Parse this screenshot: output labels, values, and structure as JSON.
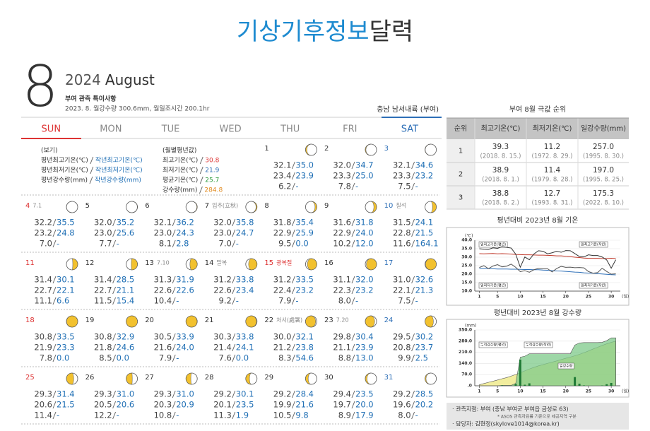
{
  "title": {
    "main": "기상기후정보",
    "sub": "달력"
  },
  "header": {
    "month": "8",
    "year": "2024",
    "month_name": "August",
    "notice_title": "부여 관측 특이사항",
    "notice_text": "2023. 8. 월강수량 300.6mm, 월일조시간 200.1hr",
    "location": "충남 남서내륙 (부여)"
  },
  "calendar": {
    "weekdays": [
      "SUN",
      "MON",
      "TUE",
      "WED",
      "THU",
      "FRI",
      "SAT"
    ],
    "legend": {
      "title": "(보기)",
      "lines": [
        [
          "평년최고기온(℃)",
          "작년최고기온(℃)"
        ],
        [
          "평년최저기온(℃)",
          "작년최저기온(℃)"
        ],
        [
          "평년강수량(mm)",
          "작년강수량(mm)"
        ]
      ]
    },
    "monthly_normals": {
      "title": "(월별평년값)",
      "lines": [
        [
          "최고기온(℃)",
          "30.8"
        ],
        [
          "최저기온(℃)",
          "21.9"
        ],
        [
          "평균기온(℃)",
          "25.7"
        ],
        [
          "강수량(mm)",
          "284.8"
        ]
      ]
    },
    "days": [
      {
        "day": "1",
        "rows": [
          [
            "32.1",
            "35.0"
          ],
          [
            "23.4",
            "23.9"
          ],
          [
            "6.2",
            "-"
          ]
        ]
      },
      {
        "day": "2",
        "rows": [
          [
            "32.0",
            "34.7"
          ],
          [
            "23.3",
            "25.0"
          ],
          [
            "7.8",
            "-"
          ]
        ]
      },
      {
        "day": "3",
        "rows": [
          [
            "32.1",
            "34.6"
          ],
          [
            "23.3",
            "23.2"
          ],
          [
            "7.5",
            "-"
          ]
        ]
      },
      {
        "day": "4",
        "note": "7.1",
        "rows": [
          [
            "32.2",
            "35.5"
          ],
          [
            "23.2",
            "24.8"
          ],
          [
            "7.0",
            "-"
          ]
        ]
      },
      {
        "day": "5",
        "rows": [
          [
            "32.0",
            "35.2"
          ],
          [
            "23.0",
            "25.6"
          ],
          [
            "7.7",
            "-"
          ]
        ]
      },
      {
        "day": "6",
        "rows": [
          [
            "32.1",
            "36.2"
          ],
          [
            "23.0",
            "24.3"
          ],
          [
            "8.1",
            "2.8"
          ]
        ]
      },
      {
        "day": "7",
        "note": "입추(立秋)",
        "rows": [
          [
            "32.0",
            "35.8"
          ],
          [
            "23.0",
            "24.7"
          ],
          [
            "7.0",
            "-"
          ]
        ]
      },
      {
        "day": "8",
        "rows": [
          [
            "31.8",
            "35.4"
          ],
          [
            "22.9",
            "25.9"
          ],
          [
            "9.5",
            "0.0"
          ]
        ]
      },
      {
        "day": "9",
        "rows": [
          [
            "31.6",
            "31.8"
          ],
          [
            "22.9",
            "24.0"
          ],
          [
            "10.2",
            "12.0"
          ]
        ]
      },
      {
        "day": "10",
        "note": "칠석",
        "rows": [
          [
            "31.5",
            "24.1"
          ],
          [
            "22.8",
            "21.5"
          ],
          [
            "11.6",
            "164.1"
          ]
        ]
      },
      {
        "day": "11",
        "rows": [
          [
            "31.4",
            "30.1"
          ],
          [
            "22.7",
            "22.1"
          ],
          [
            "11.1",
            "6.6"
          ]
        ]
      },
      {
        "day": "12",
        "rows": [
          [
            "31.4",
            "28.5"
          ],
          [
            "22.7",
            "21.1"
          ],
          [
            "11.5",
            "15.4"
          ]
        ]
      },
      {
        "day": "13",
        "note": "7.10",
        "rows": [
          [
            "31.3",
            "31.9"
          ],
          [
            "22.6",
            "22.6"
          ],
          [
            "10.4",
            "-"
          ]
        ]
      },
      {
        "day": "14",
        "note": "말복",
        "rows": [
          [
            "31.2",
            "33.8"
          ],
          [
            "22.6",
            "23.4"
          ],
          [
            "9.2",
            "-"
          ]
        ]
      },
      {
        "day": "15",
        "note": "광복절",
        "holiday": true,
        "rows": [
          [
            "31.2",
            "33.5"
          ],
          [
            "22.4",
            "23.2"
          ],
          [
            "7.9",
            "-"
          ]
        ]
      },
      {
        "day": "16",
        "rows": [
          [
            "31.1",
            "32.0"
          ],
          [
            "22.3",
            "23.2"
          ],
          [
            "8.0",
            "-"
          ]
        ]
      },
      {
        "day": "17",
        "rows": [
          [
            "31.0",
            "32.6"
          ],
          [
            "22.1",
            "21.3"
          ],
          [
            "7.5",
            "-"
          ]
        ]
      },
      {
        "day": "18",
        "rows": [
          [
            "30.8",
            "33.5"
          ],
          [
            "21.9",
            "23.3"
          ],
          [
            "7.8",
            "0.0"
          ]
        ]
      },
      {
        "day": "19",
        "rows": [
          [
            "30.8",
            "32.9"
          ],
          [
            "21.8",
            "24.6"
          ],
          [
            "8.5",
            "0.0"
          ]
        ]
      },
      {
        "day": "20",
        "rows": [
          [
            "30.5",
            "33.9"
          ],
          [
            "21.6",
            "24.0"
          ],
          [
            "7.9",
            "-"
          ]
        ]
      },
      {
        "day": "21",
        "rows": [
          [
            "30.3",
            "33.8"
          ],
          [
            "21.4",
            "24.1"
          ],
          [
            "7.6",
            "0.0"
          ]
        ]
      },
      {
        "day": "22",
        "note": "처서(處暑)",
        "rows": [
          [
            "30.0",
            "32.1"
          ],
          [
            "21.2",
            "23.8"
          ],
          [
            "8.3",
            "54.6"
          ]
        ]
      },
      {
        "day": "23",
        "note": "7.20",
        "rows": [
          [
            "29.8",
            "30.4"
          ],
          [
            "21.1",
            "23.9"
          ],
          [
            "8.8",
            "13.0"
          ]
        ]
      },
      {
        "day": "24",
        "rows": [
          [
            "29.5",
            "30.2"
          ],
          [
            "20.8",
            "23.7"
          ],
          [
            "9.9",
            "2.5"
          ]
        ]
      },
      {
        "day": "25",
        "rows": [
          [
            "29.3",
            "31.4"
          ],
          [
            "20.6",
            "21.5"
          ],
          [
            "11.4",
            "-"
          ]
        ]
      },
      {
        "day": "26",
        "rows": [
          [
            "29.3",
            "31.0"
          ],
          [
            "20.5",
            "20.6"
          ],
          [
            "12.2",
            "-"
          ]
        ]
      },
      {
        "day": "27",
        "rows": [
          [
            "29.3",
            "31.0"
          ],
          [
            "20.3",
            "20.9"
          ],
          [
            "10.8",
            "-"
          ]
        ]
      },
      {
        "day": "28",
        "rows": [
          [
            "29.2",
            "30.1"
          ],
          [
            "20.1",
            "23.5"
          ],
          [
            "11.3",
            "1.9"
          ]
        ]
      },
      {
        "day": "29",
        "rows": [
          [
            "29.2",
            "28.4"
          ],
          [
            "19.9",
            "21.6"
          ],
          [
            "10.5",
            "9.8"
          ]
        ]
      },
      {
        "day": "30",
        "rows": [
          [
            "29.4",
            "23.5"
          ],
          [
            "19.7",
            "20.0"
          ],
          [
            "8.9",
            "17.9"
          ]
        ]
      },
      {
        "day": "31",
        "rows": [
          [
            "29.2",
            "28.5"
          ],
          [
            "19.6",
            "20.2"
          ],
          [
            "8.0",
            "-"
          ]
        ]
      }
    ]
  },
  "extremes": {
    "title": "부여 8월 극값 순위",
    "headers": [
      "순위",
      "최고기온(℃)",
      "최저기온(℃)",
      "일강수량(mm)"
    ],
    "rows": [
      [
        "1",
        [
          "39.3",
          "(2018. 8. 15.)"
        ],
        [
          "11.2",
          "(1972. 8. 29.)"
        ],
        [
          "257.0",
          "(1995. 8. 30.)"
        ]
      ],
      [
        "2",
        [
          "38.9",
          "(2018. 8. 1.)"
        ],
        [
          "11.4",
          "(1979. 8. 28.)"
        ],
        [
          "197.0",
          "(1995. 8. 25.)"
        ]
      ],
      [
        "3",
        [
          "38.8",
          "(2018. 8. 2.)"
        ],
        [
          "12.7",
          "(1993. 8. 31.)"
        ],
        [
          "175.3",
          "(2022. 8. 10.)"
        ]
      ]
    ]
  },
  "chart_data": [
    {
      "type": "line",
      "title": "평년대비 2023년 8월 기온",
      "y_label": "(℃)",
      "x_label": "(일)",
      "x": [
        1,
        2,
        3,
        4,
        5,
        6,
        7,
        8,
        9,
        10,
        11,
        12,
        13,
        14,
        15,
        16,
        17,
        18,
        19,
        20,
        21,
        22,
        23,
        24,
        25,
        26,
        27,
        28,
        29,
        30,
        31
      ],
      "xlim": [
        0,
        32
      ],
      "xticks": [
        1,
        5,
        10,
        15,
        20,
        25,
        30
      ],
      "ylim": [
        10,
        40
      ],
      "yticks": [
        {
          "value": 40,
          "label": "40.0"
        },
        {
          "value": 35,
          "label": "35.0"
        },
        {
          "value": 30,
          "label": "30.0"
        },
        {
          "value": 25,
          "label": "25.0"
        },
        {
          "value": 20,
          "label": "20.0"
        },
        {
          "value": 15,
          "label": "15.0"
        },
        {
          "value": 10,
          "label": "10.0"
        }
      ],
      "series": [
        {
          "name": "일최고기온(평년)",
          "color": "#c0392b",
          "values": [
            32.1,
            32.0,
            32.1,
            32.2,
            32.0,
            32.1,
            32.0,
            31.8,
            31.6,
            31.5,
            31.4,
            31.4,
            31.3,
            31.2,
            31.2,
            31.1,
            31.0,
            30.8,
            30.8,
            30.5,
            30.3,
            30.0,
            29.8,
            29.5,
            29.3,
            29.3,
            29.3,
            29.2,
            29.2,
            29.4,
            29.2
          ]
        },
        {
          "name": "일최고기온(작년)",
          "color": "#333333",
          "values": [
            35.0,
            34.7,
            34.6,
            35.5,
            35.2,
            36.2,
            35.8,
            35.4,
            31.8,
            24.1,
            30.1,
            28.5,
            31.9,
            33.8,
            33.5,
            32.0,
            32.6,
            33.5,
            32.9,
            33.9,
            33.8,
            32.1,
            30.4,
            30.2,
            31.4,
            31.0,
            31.0,
            30.1,
            28.4,
            23.5,
            28.5
          ]
        },
        {
          "name": "일최저기온(평년)",
          "color": "#2e6fb7",
          "values": [
            23.4,
            23.3,
            23.3,
            23.2,
            23.0,
            23.0,
            23.0,
            22.9,
            22.9,
            22.8,
            22.7,
            22.7,
            22.6,
            22.6,
            22.4,
            22.3,
            22.1,
            21.9,
            21.8,
            21.6,
            21.4,
            21.2,
            21.1,
            20.8,
            20.6,
            20.5,
            20.3,
            20.1,
            19.9,
            19.7,
            19.6
          ]
        },
        {
          "name": "일최저기온(작년)",
          "color": "#555555",
          "values": [
            23.9,
            25.0,
            23.2,
            24.8,
            25.6,
            24.3,
            24.7,
            25.9,
            24.0,
            21.5,
            22.1,
            21.1,
            22.6,
            23.4,
            23.2,
            23.2,
            21.3,
            23.3,
            24.6,
            24.0,
            24.1,
            23.8,
            23.9,
            23.7,
            21.5,
            20.6,
            20.9,
            23.5,
            21.6,
            20.0,
            20.2
          ]
        }
      ]
    },
    {
      "type": "line",
      "title": "평년대비 2023년 8월 강수량",
      "y_label": "(mm)",
      "x_label": "(일)",
      "x": [
        1,
        2,
        3,
        4,
        5,
        6,
        7,
        8,
        9,
        10,
        11,
        12,
        13,
        14,
        15,
        16,
        17,
        18,
        19,
        20,
        21,
        22,
        23,
        24,
        25,
        26,
        27,
        28,
        29,
        30,
        31
      ],
      "xlim": [
        0,
        32
      ],
      "xticks": [
        1,
        5,
        10,
        15,
        20,
        25,
        30
      ],
      "ylim": [
        0,
        350
      ],
      "yticks": [
        {
          "value": 350,
          "label": "350.0"
        },
        {
          "value": 280,
          "label": "280.0"
        },
        {
          "value": 210,
          "label": "210.0"
        },
        {
          "value": 140,
          "label": "140.0"
        },
        {
          "value": 70,
          "label": "70.0"
        },
        {
          "value": 0,
          "label": ".0"
        }
      ],
      "series": [
        {
          "name": "누적강수량(평년)",
          "kind": "cumulative",
          "color": "#ece77e",
          "values": [
            6.2,
            7.8,
            7.5,
            7.0,
            7.7,
            8.1,
            7.0,
            9.5,
            10.2,
            11.6,
            11.1,
            11.5,
            10.4,
            9.2,
            7.9,
            8.0,
            7.5,
            7.8,
            8.5,
            7.9,
            7.6,
            8.3,
            8.8,
            9.9,
            11.4,
            12.2,
            10.8,
            11.3,
            10.5,
            8.9,
            8.0
          ]
        },
        {
          "name": "누적강수량(작년)",
          "kind": "cumulative",
          "color": "#7ec98a",
          "values": [
            0,
            0,
            0,
            0,
            0,
            2.8,
            0,
            0.0,
            12.0,
            164.1,
            6.6,
            15.4,
            0,
            0,
            0,
            0,
            0,
            0.0,
            0.0,
            0,
            0.0,
            54.6,
            13.0,
            2.5,
            0,
            0,
            0,
            1.9,
            9.8,
            17.9,
            0
          ]
        },
        {
          "name": "일강수량",
          "kind": "bar",
          "color": "#1f7a35",
          "values": [
            0,
            0,
            0,
            0,
            0,
            2.8,
            0,
            0.0,
            12.0,
            164.1,
            6.6,
            15.4,
            0,
            0,
            0,
            0,
            0,
            0.0,
            0.0,
            0,
            0.0,
            54.6,
            13.0,
            2.5,
            0,
            0,
            0,
            1.9,
            9.8,
            17.9,
            0
          ]
        }
      ]
    }
  ],
  "notes": {
    "station": "· 관측지점: 부여 (충남 부여군 부여읍 금성로 63)",
    "asos": "* ASOS 관측자료를 기준으로 제공지역 구분",
    "contact": "· 담당자: 김현정(skylove1014@korea.kr)"
  }
}
